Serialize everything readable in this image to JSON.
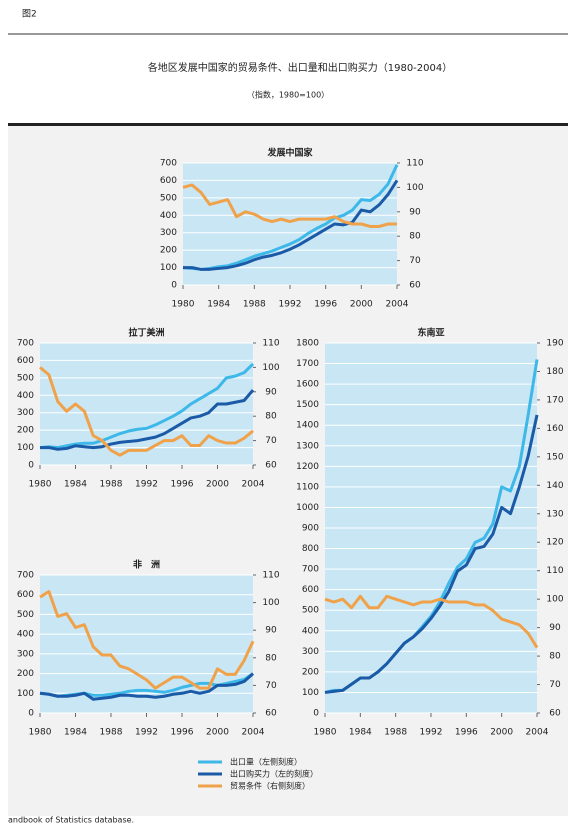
{
  "figure_label": "图2",
  "title": "各地区发展中国家的贸易条件、出口量和出口购买力（1980-2004）",
  "subtitle": "（指数，1980=100）",
  "legend": [
    {
      "name": "出口量（左侧刻度）",
      "color": "#3db8e8"
    },
    {
      "name": "出口购买力（左的刻度）",
      "color": "#1b5aa6"
    },
    {
      "name": "贸易条件（右侧刻度）",
      "color": "#f0a24a"
    }
  ],
  "source": "andbook of Statistics database.",
  "chart_data": [
    {
      "type": "line",
      "title": "发展中国家",
      "x": [
        1980,
        1981,
        1982,
        1983,
        1984,
        1985,
        1986,
        1987,
        1988,
        1989,
        1990,
        1991,
        1992,
        1993,
        1994,
        1995,
        1996,
        1997,
        1998,
        1999,
        2000,
        2001,
        2002,
        2003,
        2004
      ],
      "xticks": [
        1980,
        1984,
        1988,
        1992,
        1996,
        2000,
        2004
      ],
      "xlim": [
        1980,
        2004
      ],
      "ylim": [
        0,
        700
      ],
      "yticks": [
        0,
        100,
        200,
        300,
        400,
        500,
        600,
        700
      ],
      "y2lim": [
        60,
        110
      ],
      "y2ticks": [
        60,
        70,
        80,
        90,
        100,
        110
      ],
      "grid": true,
      "series": [
        {
          "values": [
            100,
            95,
            90,
            95,
            105,
            110,
            125,
            145,
            165,
            180,
            195,
            215,
            235,
            260,
            295,
            325,
            350,
            385,
            400,
            430,
            490,
            485,
            520,
            580,
            690
          ]
        },
        {
          "values": [
            100,
            100,
            90,
            90,
            95,
            100,
            110,
            125,
            145,
            160,
            170,
            185,
            205,
            230,
            260,
            290,
            320,
            350,
            345,
            360,
            430,
            420,
            460,
            520,
            600
          ]
        },
        {
          "axis": "y2",
          "values": [
            100,
            101,
            98,
            93,
            94,
            95,
            88,
            90,
            89,
            87,
            86,
            87,
            86,
            87,
            87,
            87,
            87,
            88,
            86,
            85,
            85,
            84,
            84,
            85,
            85
          ]
        }
      ]
    },
    {
      "type": "line",
      "title": "拉丁美洲",
      "x": [
        1980,
        1981,
        1982,
        1983,
        1984,
        1985,
        1986,
        1987,
        1988,
        1989,
        1990,
        1991,
        1992,
        1993,
        1994,
        1995,
        1996,
        1997,
        1998,
        1999,
        2000,
        2001,
        2002,
        2003,
        2004
      ],
      "xticks": [
        1980,
        1984,
        1988,
        1992,
        1996,
        2000,
        2004
      ],
      "xlim": [
        1980,
        2004
      ],
      "ylim": [
        0,
        700
      ],
      "yticks": [
        0,
        100,
        200,
        300,
        400,
        500,
        600,
        700
      ],
      "y2lim": [
        60,
        110
      ],
      "y2ticks": [
        60,
        70,
        80,
        90,
        100,
        110
      ],
      "grid": true,
      "series": [
        {
          "values": [
            100,
            105,
            100,
            110,
            120,
            125,
            125,
            140,
            160,
            180,
            195,
            205,
            210,
            230,
            255,
            280,
            310,
            350,
            380,
            410,
            440,
            500,
            510,
            530,
            580
          ]
        },
        {
          "values": [
            100,
            100,
            90,
            95,
            110,
            105,
            100,
            105,
            120,
            130,
            135,
            140,
            150,
            160,
            180,
            210,
            240,
            270,
            280,
            300,
            350,
            350,
            360,
            370,
            430
          ]
        },
        {
          "axis": "y2",
          "values": [
            100,
            97,
            86,
            82,
            85,
            82,
            72,
            70,
            66,
            64,
            66,
            66,
            66,
            68,
            70,
            70,
            72,
            68,
            68,
            72,
            70,
            69,
            69,
            71,
            74
          ]
        }
      ]
    },
    {
      "type": "line",
      "title": "非　洲",
      "x": [
        1980,
        1981,
        1982,
        1983,
        1984,
        1985,
        1986,
        1987,
        1988,
        1989,
        1990,
        1991,
        1992,
        1993,
        1994,
        1995,
        1996,
        1997,
        1998,
        1999,
        2000,
        2001,
        2002,
        2003,
        2004
      ],
      "xticks": [
        1980,
        1984,
        1988,
        1992,
        1996,
        2000,
        2004
      ],
      "xlim": [
        1980,
        2004
      ],
      "ylim": [
        0,
        700
      ],
      "yticks": [
        0,
        100,
        200,
        300,
        400,
        500,
        600,
        700
      ],
      "y2lim": [
        60,
        110
      ],
      "y2ticks": [
        60,
        70,
        80,
        90,
        100,
        110
      ],
      "grid": true,
      "series": [
        {
          "values": [
            100,
            95,
            85,
            90,
            95,
            100,
            90,
            90,
            95,
            100,
            110,
            115,
            115,
            110,
            105,
            115,
            130,
            140,
            150,
            150,
            140,
            150,
            160,
            170,
            200
          ]
        },
        {
          "values": [
            100,
            95,
            85,
            85,
            90,
            100,
            70,
            75,
            80,
            90,
            90,
            85,
            85,
            80,
            85,
            95,
            100,
            110,
            100,
            110,
            140,
            140,
            145,
            160,
            200
          ]
        },
        {
          "axis": "y2",
          "values": [
            102,
            104,
            95,
            96,
            91,
            92,
            84,
            81,
            81,
            77,
            76,
            74,
            72,
            69,
            71,
            73,
            73,
            71,
            69,
            69,
            76,
            74,
            74,
            79,
            86
          ]
        }
      ]
    },
    {
      "type": "line",
      "title": "东南亚",
      "x": [
        1980,
        1981,
        1982,
        1983,
        1984,
        1985,
        1986,
        1987,
        1988,
        1989,
        1990,
        1991,
        1992,
        1993,
        1994,
        1995,
        1996,
        1997,
        1998,
        1999,
        2000,
        2001,
        2002,
        2003,
        2004
      ],
      "xticks": [
        1980,
        1984,
        1988,
        1992,
        1996,
        2000,
        2004
      ],
      "xlim": [
        1980,
        2004
      ],
      "ylim": [
        0,
        1800
      ],
      "yticks": [
        0,
        100,
        200,
        300,
        400,
        500,
        600,
        700,
        800,
        900,
        1000,
        1100,
        1200,
        1300,
        1400,
        1500,
        1600,
        1700,
        1800
      ],
      "y2lim": [
        60,
        190
      ],
      "y2ticks": [
        60,
        70,
        80,
        90,
        100,
        110,
        120,
        130,
        140,
        150,
        160,
        170,
        180,
        190
      ],
      "grid": true,
      "series": [
        {
          "values": [
            100,
            110,
            110,
            140,
            170,
            170,
            200,
            240,
            290,
            340,
            370,
            420,
            470,
            540,
            630,
            710,
            750,
            830,
            850,
            920,
            1100,
            1080,
            1200,
            1450,
            1720
          ]
        },
        {
          "values": [
            100,
            105,
            110,
            140,
            170,
            170,
            200,
            240,
            290,
            340,
            370,
            410,
            460,
            520,
            590,
            690,
            720,
            800,
            810,
            870,
            1000,
            970,
            1100,
            1250,
            1450
          ]
        },
        {
          "axis": "y2",
          "values": [
            100,
            99,
            100,
            97,
            101,
            97,
            97,
            101,
            100,
            99,
            98,
            99,
            99,
            100,
            99,
            99,
            99,
            98,
            98,
            96,
            93,
            92,
            91,
            88,
            83
          ]
        }
      ]
    }
  ]
}
